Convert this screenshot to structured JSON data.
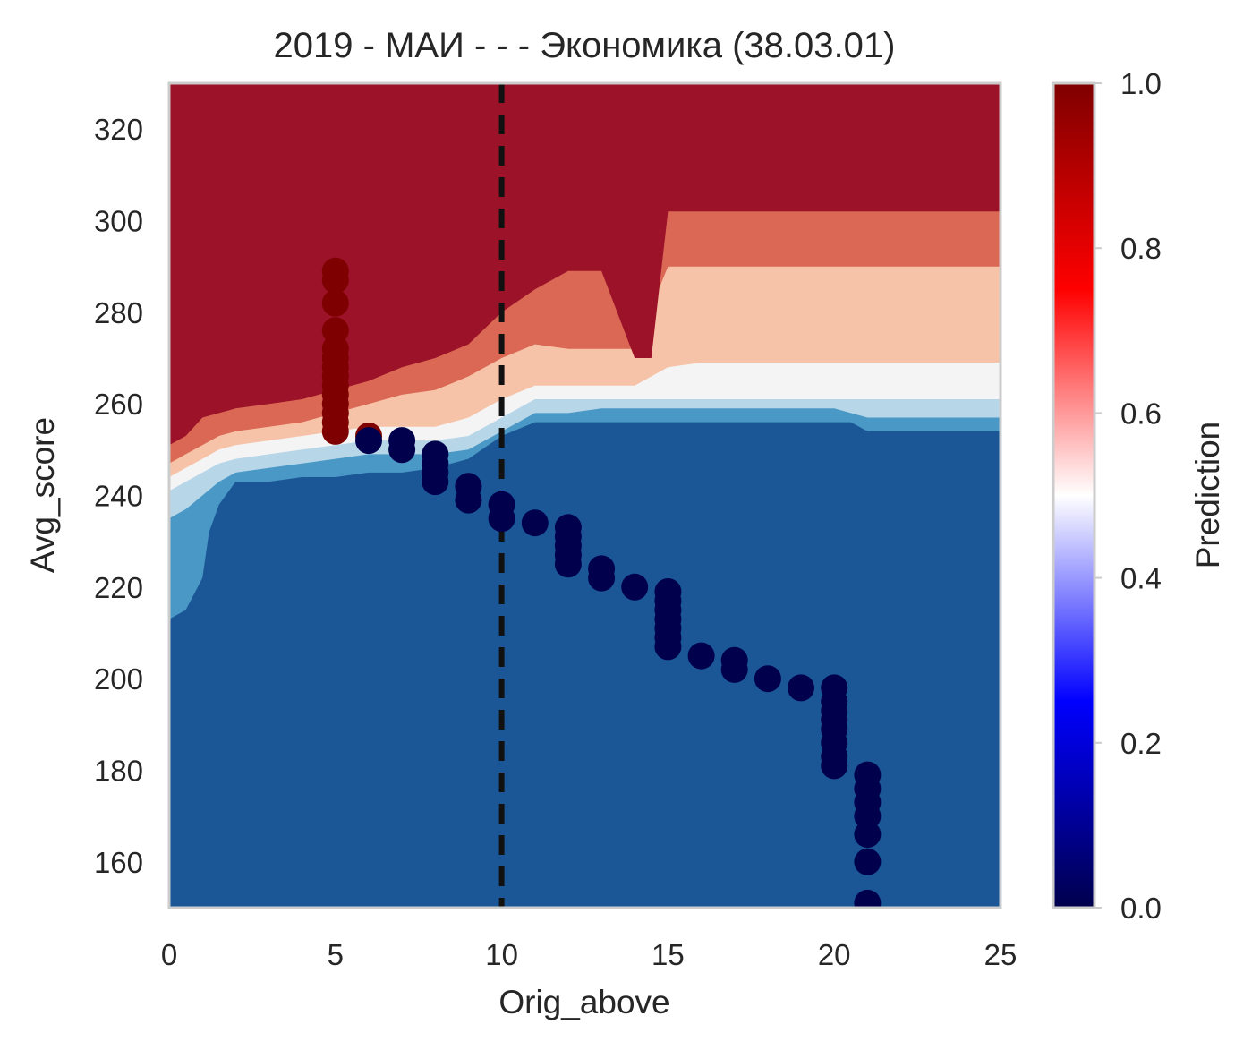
{
  "chart_data": {
    "type": "scatter",
    "title": "2019 - МАИ - - - Экономика (38.03.01)",
    "xlabel": "Orig_above",
    "ylabel": "Avg_score",
    "xlim": [
      0,
      25
    ],
    "ylim": [
      150,
      330
    ],
    "x_ticks": [
      "0",
      "5",
      "10",
      "15",
      "20",
      "25"
    ],
    "x_tick_values": [
      0,
      5,
      10,
      15,
      20,
      25
    ],
    "y_ticks": [
      "160",
      "180",
      "200",
      "220",
      "240",
      "260",
      "280",
      "300",
      "320"
    ],
    "y_tick_values": [
      160,
      180,
      200,
      220,
      240,
      260,
      280,
      300,
      320
    ],
    "grid": false,
    "threshold_line": {
      "x": 10,
      "style": "dashed",
      "color": "#111111"
    },
    "contour_levels": [
      {
        "level": "0.1-0.2",
        "color": "#1b5796"
      },
      {
        "level": "0.2-0.3",
        "color": "#4a98c5"
      },
      {
        "level": "0.3-0.4",
        "color": "#b7d6e8"
      },
      {
        "level": "0.4-0.5",
        "color": "#f4f4f4"
      },
      {
        "level": "0.5-0.6",
        "color": "#f7c3a8"
      },
      {
        "level": "0.6-0.7",
        "color": "#da6854"
      },
      {
        "level": "0.8-0.9",
        "color": "#9b1229"
      }
    ],
    "boundaries": {
      "b_blue_mid": [
        [
          0,
          213
        ],
        [
          0.5,
          215
        ],
        [
          1,
          222
        ],
        [
          1.2,
          232
        ],
        [
          1.5,
          238
        ],
        [
          2,
          243
        ],
        [
          3,
          243
        ],
        [
          4,
          244
        ],
        [
          5,
          244
        ],
        [
          6,
          245
        ],
        [
          7,
          245
        ],
        [
          8,
          246
        ],
        [
          9,
          248
        ],
        [
          10,
          253
        ],
        [
          11,
          256
        ],
        [
          12,
          256
        ],
        [
          13,
          256
        ],
        [
          14,
          256
        ],
        [
          15,
          256
        ],
        [
          16,
          256
        ],
        [
          17,
          256
        ],
        [
          18,
          256
        ],
        [
          19,
          256
        ],
        [
          20,
          256
        ],
        [
          20.5,
          256
        ],
        [
          21,
          254
        ],
        [
          25,
          254
        ]
      ],
      "b_lightblue": [
        [
          0,
          235
        ],
        [
          0.5,
          237
        ],
        [
          1,
          240
        ],
        [
          1.5,
          243
        ],
        [
          2,
          245
        ],
        [
          3,
          246
        ],
        [
          4,
          247
        ],
        [
          5,
          248
        ],
        [
          6,
          249
        ],
        [
          7,
          249
        ],
        [
          8,
          249
        ],
        [
          9,
          250
        ],
        [
          10,
          254
        ],
        [
          11,
          258
        ],
        [
          12,
          258
        ],
        [
          13,
          259
        ],
        [
          14,
          259
        ],
        [
          15,
          259
        ],
        [
          16,
          259
        ],
        [
          17,
          259
        ],
        [
          18,
          259
        ],
        [
          19,
          259
        ],
        [
          20,
          259
        ],
        [
          20.5,
          258
        ],
        [
          21,
          257
        ],
        [
          25,
          257
        ]
      ],
      "b_white": [
        [
          0,
          241
        ],
        [
          0.5,
          243
        ],
        [
          1,
          245
        ],
        [
          1.5,
          247
        ],
        [
          2,
          248
        ],
        [
          3,
          249
        ],
        [
          4,
          250
        ],
        [
          5,
          251
        ],
        [
          6,
          252
        ],
        [
          7,
          252
        ],
        [
          8,
          252
        ],
        [
          9,
          253
        ],
        [
          10,
          257
        ],
        [
          11,
          261
        ],
        [
          12,
          261
        ],
        [
          13,
          261
        ],
        [
          14,
          261
        ],
        [
          15,
          261
        ],
        [
          16,
          261
        ],
        [
          17,
          261
        ],
        [
          18,
          261
        ],
        [
          19,
          261
        ],
        [
          20,
          261
        ],
        [
          20.5,
          261
        ],
        [
          21,
          261
        ],
        [
          25,
          261
        ]
      ],
      "b_peach": [
        [
          0,
          244
        ],
        [
          0.5,
          246
        ],
        [
          1,
          248
        ],
        [
          1.5,
          250
        ],
        [
          2,
          251
        ],
        [
          3,
          252
        ],
        [
          4,
          253
        ],
        [
          5,
          254
        ],
        [
          6,
          255
        ],
        [
          7,
          255
        ],
        [
          8,
          255
        ],
        [
          9,
          257
        ],
        [
          10,
          261
        ],
        [
          11,
          264
        ],
        [
          12,
          264
        ],
        [
          13,
          264
        ],
        [
          14,
          264
        ],
        [
          15,
          268
        ],
        [
          16,
          269
        ],
        [
          17,
          269
        ],
        [
          18,
          269
        ],
        [
          19,
          269
        ],
        [
          20,
          269
        ],
        [
          20.5,
          269
        ],
        [
          21,
          269
        ],
        [
          25,
          269
        ]
      ],
      "b_salmon": [
        [
          0,
          247
        ],
        [
          0.5,
          249
        ],
        [
          1,
          251
        ],
        [
          1.5,
          253
        ],
        [
          2,
          254
        ],
        [
          3,
          255
        ],
        [
          4,
          256
        ],
        [
          5,
          258
        ],
        [
          6,
          260
        ],
        [
          7,
          262
        ],
        [
          8,
          263
        ],
        [
          9,
          266
        ],
        [
          10,
          270
        ],
        [
          11,
          273
        ],
        [
          12,
          272
        ],
        [
          13,
          272
        ],
        [
          14,
          272
        ],
        [
          15,
          290
        ],
        [
          16,
          290
        ],
        [
          17,
          290
        ],
        [
          18,
          290
        ],
        [
          19,
          290
        ],
        [
          20,
          290
        ],
        [
          20.5,
          290
        ],
        [
          21,
          290
        ],
        [
          25,
          290
        ]
      ],
      "b_darkred": [
        [
          0,
          251
        ],
        [
          0.5,
          253
        ],
        [
          1,
          257
        ],
        [
          1.5,
          258
        ],
        [
          2,
          259
        ],
        [
          3,
          260
        ],
        [
          4,
          261
        ],
        [
          5,
          263
        ],
        [
          6,
          265
        ],
        [
          7,
          268
        ],
        [
          8,
          270
        ],
        [
          9,
          273
        ],
        [
          10,
          280
        ],
        [
          11,
          285
        ],
        [
          12,
          289
        ],
        [
          13,
          289
        ],
        [
          14,
          270
        ],
        [
          14.5,
          270
        ],
        [
          15,
          302
        ],
        [
          16,
          302
        ],
        [
          17,
          302
        ],
        [
          18,
          302
        ],
        [
          19,
          302
        ],
        [
          20,
          302
        ],
        [
          20.5,
          302
        ],
        [
          21,
          302
        ],
        [
          25,
          302
        ]
      ]
    },
    "colorbar": {
      "label": "Prediction",
      "ticks": [
        "0.0",
        "0.2",
        "0.4",
        "0.6",
        "0.8",
        "1.0"
      ],
      "tick_values": [
        0,
        0.2,
        0.4,
        0.6,
        0.8,
        1.0
      ],
      "colormap": "seismic",
      "stops": [
        {
          "v": 0.0,
          "c": "#00004c"
        },
        {
          "v": 0.25,
          "c": "#0000ff"
        },
        {
          "v": 0.5,
          "c": "#ffffff"
        },
        {
          "v": 0.75,
          "c": "#ff0000"
        },
        {
          "v": 1.0,
          "c": "#7f0000"
        }
      ]
    },
    "series": [
      {
        "color": "#7f0000",
        "points": [
          [
            5,
            254
          ],
          [
            5,
            256
          ],
          [
            5,
            258
          ],
          [
            5,
            260
          ],
          [
            5,
            262
          ],
          [
            5,
            264
          ],
          [
            5,
            266
          ],
          [
            5,
            268
          ],
          [
            5,
            270
          ],
          [
            5,
            272
          ],
          [
            5,
            276
          ],
          [
            5,
            282
          ],
          [
            5,
            287
          ],
          [
            5,
            289
          ],
          [
            6,
            253
          ]
        ]
      },
      {
        "color": "#00004c",
        "points": [
          [
            6,
            252
          ],
          [
            7,
            250
          ],
          [
            7,
            252
          ],
          [
            8,
            243
          ],
          [
            8,
            245
          ],
          [
            8,
            247
          ],
          [
            8,
            249
          ],
          [
            9,
            239
          ],
          [
            9,
            242
          ],
          [
            10,
            235
          ],
          [
            10,
            238
          ],
          [
            11,
            234
          ],
          [
            12,
            225
          ],
          [
            12,
            227
          ],
          [
            12,
            229
          ],
          [
            12,
            231
          ],
          [
            12,
            233
          ],
          [
            13,
            222
          ],
          [
            13,
            224
          ],
          [
            14,
            220
          ],
          [
            15,
            207
          ],
          [
            15,
            209
          ],
          [
            15,
            211
          ],
          [
            15,
            213
          ],
          [
            15,
            215
          ],
          [
            15,
            217
          ],
          [
            15,
            219
          ],
          [
            16,
            205
          ],
          [
            17,
            202
          ],
          [
            17,
            204
          ],
          [
            18,
            200
          ],
          [
            19,
            198
          ],
          [
            20,
            181
          ],
          [
            20,
            183
          ],
          [
            20,
            186
          ],
          [
            20,
            189
          ],
          [
            20,
            191
          ],
          [
            20,
            193
          ],
          [
            20,
            195
          ],
          [
            20,
            198
          ],
          [
            21,
            151
          ],
          [
            21,
            160
          ],
          [
            21,
            166
          ],
          [
            21,
            170
          ],
          [
            21,
            173
          ],
          [
            21,
            176
          ],
          [
            21,
            179
          ]
        ]
      }
    ]
  }
}
